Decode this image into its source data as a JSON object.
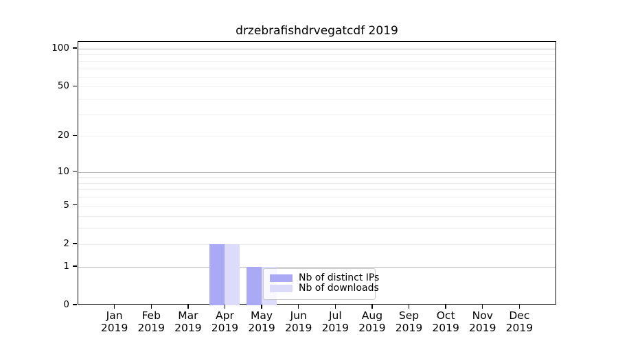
{
  "figure": {
    "kind": "download-stats-bar-chart"
  },
  "chart_data": {
    "type": "bar",
    "title": "drzebrafishdrvegatcdf 2019",
    "x_tick_months": [
      "Jan",
      "Feb",
      "Mar",
      "Apr",
      "May",
      "Jun",
      "Jul",
      "Aug",
      "Sep",
      "Oct",
      "Nov",
      "Dec"
    ],
    "x_tick_year": "2019",
    "categories": [
      "Jan 2019",
      "Feb 2019",
      "Mar 2019",
      "Apr 2019",
      "May 2019",
      "Jun 2019",
      "Jul 2019",
      "Aug 2019",
      "Sep 2019",
      "Oct 2019",
      "Nov 2019",
      "Dec 2019"
    ],
    "series": [
      {
        "name": "Nb of distinct IPs",
        "color": "#a9a9f6",
        "values": [
          0,
          0,
          0,
          2,
          1,
          0,
          0,
          0,
          0,
          0,
          0,
          0
        ]
      },
      {
        "name": "Nb of downloads",
        "color": "#dcdcfa",
        "values": [
          0,
          0,
          0,
          2,
          1,
          0,
          0,
          0,
          0,
          0,
          0,
          0
        ]
      }
    ],
    "y_axis": {
      "scale": "log1p",
      "labeled_ticks": [
        0,
        1,
        2,
        5,
        10,
        20,
        50,
        100
      ],
      "decade_gridlines": [
        1,
        10,
        100
      ],
      "minor_gridlines": [
        2,
        3,
        4,
        5,
        6,
        7,
        8,
        9,
        20,
        30,
        40,
        50,
        60,
        70,
        80,
        90
      ],
      "ylim": [
        0,
        112
      ],
      "grid": true
    },
    "legend": {
      "entries": [
        "Nb of distinct IPs",
        "Nb of downloads"
      ],
      "position": "inside-lower-center"
    },
    "colors": {
      "distinct_ips_bar": "#a9a9f6",
      "downloads_bar": "#dcdcfa",
      "decade_gridline": "#b9b9b9",
      "minor_gridline": "#eeeeee",
      "axis_spine": "#000000",
      "legend_border": "#c9c9c9"
    }
  }
}
